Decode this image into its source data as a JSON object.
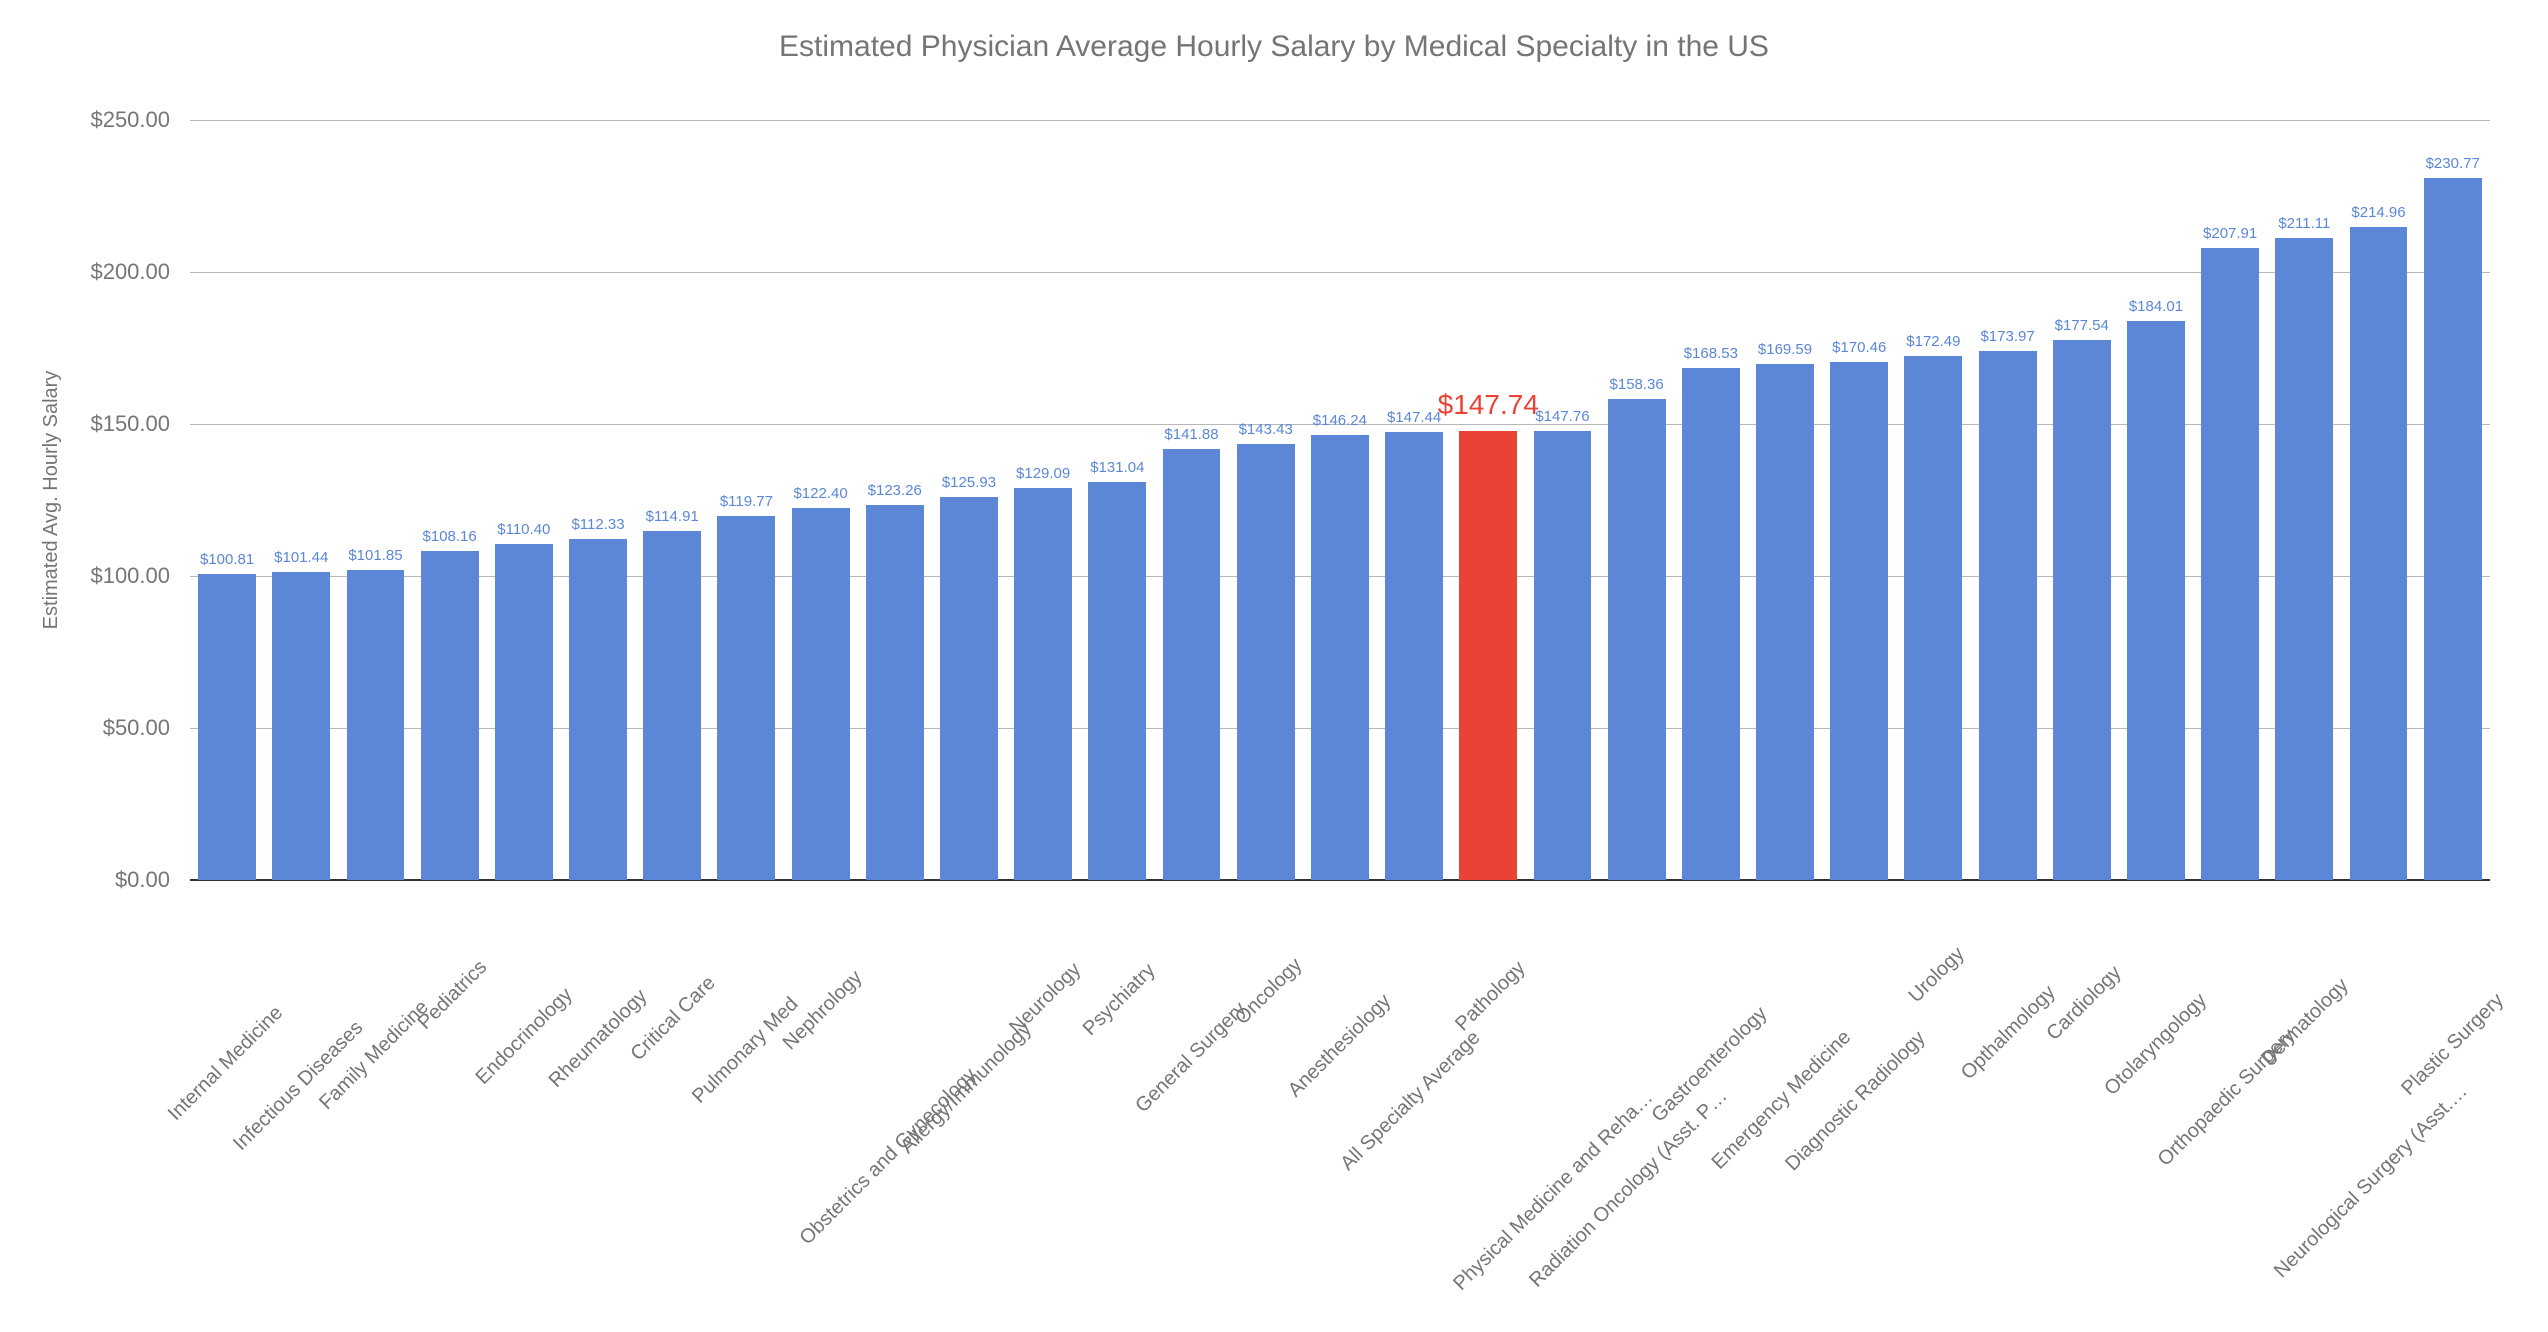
{
  "chart": {
    "type": "bar",
    "title": "Estimated Physician Average Hourly Salary by Medical Specialty in the US",
    "title_fontsize": 30,
    "title_color": "#757575",
    "ylabel": "Estimated Avg. Hourly Salary",
    "ylabel_fontsize": 20,
    "ylabel_color": "#757575",
    "background_color": "#ffffff",
    "grid_color": "#b7b7b7",
    "baseline_color": "#333333",
    "tick_color": "#757575",
    "tick_fontsize": 22,
    "bar_label_fontsize": 15,
    "xlabel_fontsize": 20,
    "xlabel_color": "#757575",
    "xlabel_rotation_deg": -45,
    "ylim": [
      0,
      250
    ],
    "ytick_step": 50,
    "yticks": [
      "$0.00",
      "$50.00",
      "$100.00",
      "$150.00",
      "$200.00",
      "$250.00"
    ],
    "bar_width_ratio": 0.78,
    "default_bar_color": "#5b87d6",
    "default_label_color": "#5b87d6",
    "highlight_bar_color": "#ea4335",
    "highlight_label_color": "#ea4335",
    "highlight_label_fontsize": 28,
    "categories": [
      "Internal Medicine",
      "Infectious Diseases",
      "Family Medicine",
      "Pediatrics",
      "Endocrinology",
      "Rheumatology",
      "Critical Care",
      "Pulmonary Med",
      "Nephrology",
      "Obstetrics and Gynecology",
      "Allergy/Immunology",
      "Neurology",
      "Psychiatry",
      "General Surgery",
      "Oncology",
      "Anesthesiology",
      "All Specialty Average",
      "Pathology",
      "Physical Medicine and Reha…",
      "Radiation Oncology (Asst. P…",
      "Gastroenterology",
      "Emergency Medicine",
      "Diagnostic Radiology",
      "Urology",
      "Opthalmology",
      "Cardiology",
      "Otolaryngology",
      "Orthopaedic Surgery",
      "Dermatology",
      "Neurological Surgery (Asst.…",
      "Plastic Surgery"
    ],
    "values": [
      100.81,
      101.44,
      101.85,
      108.16,
      110.4,
      112.33,
      114.91,
      119.77,
      122.4,
      123.26,
      125.93,
      129.09,
      131.04,
      141.88,
      143.43,
      146.24,
      147.44,
      147.74,
      147.76,
      158.36,
      168.53,
      169.59,
      170.46,
      172.49,
      173.97,
      177.54,
      184.01,
      207.91,
      211.11,
      214.96,
      230.77
    ],
    "value_labels": [
      "$100.81",
      "$101.44",
      "$101.85",
      "$108.16",
      "$110.40",
      "$112.33",
      "$114.91",
      "$119.77",
      "$122.40",
      "$123.26",
      "$125.93",
      "$129.09",
      "$131.04",
      "$141.88",
      "$143.43",
      "$146.24",
      "$147.44",
      "$147.74",
      "$147.76",
      "$158.36",
      "$168.53",
      "$169.59",
      "$170.46",
      "$172.49",
      "$173.97",
      "$177.54",
      "$184.01",
      "$207.91",
      "$211.11",
      "$214.96",
      "$230.77"
    ],
    "highlight_index": 17
  }
}
